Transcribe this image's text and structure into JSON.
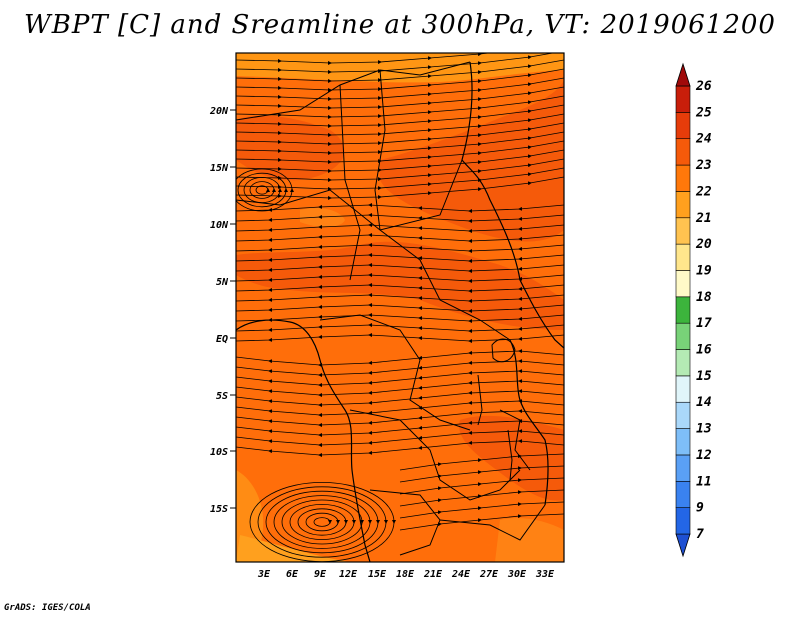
{
  "title": "WBPT [C] and Sreamline at 300hPa, VT: 2019061200",
  "footer": "GrADS: IGES/COLA",
  "map": {
    "lat_labels": [
      "20N",
      "15N",
      "10N",
      "5N",
      "EQ",
      "5S",
      "10S",
      "15S"
    ],
    "lon_labels": [
      "3E",
      "6E",
      "9E",
      "12E",
      "15E",
      "18E",
      "21E",
      "24E",
      "27E",
      "30E",
      "33E"
    ],
    "field": "WBPT",
    "level": "300hPa",
    "valid_time": "2019061200"
  },
  "colorbar": {
    "labels": [
      "7",
      "9",
      "11",
      "12",
      "13",
      "14",
      "15",
      "16",
      "17",
      "18",
      "19",
      "20",
      "21",
      "22",
      "23",
      "24",
      "25",
      "26"
    ],
    "colors": [
      "#1e50d2",
      "#2366e6",
      "#3a82f0",
      "#5aa0f5",
      "#7ebef8",
      "#aad8fa",
      "#e0f5fa",
      "#b4eab4",
      "#78d278",
      "#3cb43c",
      "#fffac8",
      "#ffe68c",
      "#ffc350",
      "#ffa01e",
      "#ff780a",
      "#f55a0a",
      "#e63c0a",
      "#c81e0a",
      "#a00a0a"
    ]
  },
  "colors": {
    "field_main": "#ff6e0a",
    "field_warm": "#f55a0a",
    "field_cool": "#ff9614",
    "streamline": "#000000"
  }
}
